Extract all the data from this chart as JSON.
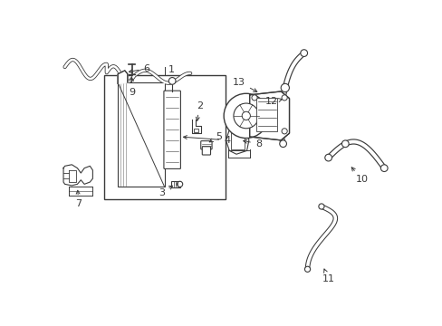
{
  "bg_color": "#ffffff",
  "lc": "#3a3a3a",
  "lw": 0.8,
  "fs": 8,
  "fw": "normal",
  "fig_w": 4.89,
  "fig_h": 3.6,
  "dpi": 100
}
